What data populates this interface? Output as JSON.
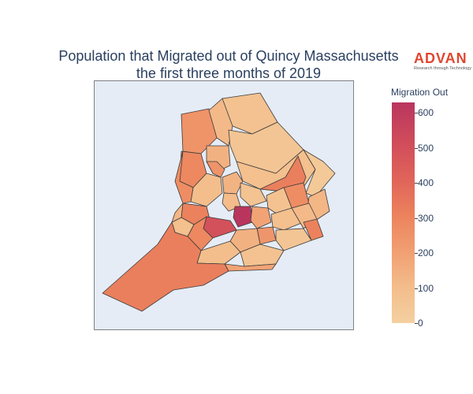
{
  "title": {
    "line1": "Population that Migrated out of Quincy Massachusetts",
    "line2": "the first three months of 2019"
  },
  "logo": {
    "word": "ADVAN",
    "tagline": "Research through Technology"
  },
  "colorbar": {
    "title": "Migration Out",
    "ticks": [
      "600",
      "500",
      "400",
      "300",
      "200",
      "100",
      "0"
    ]
  },
  "map_data": {
    "type": "choropleth",
    "variable": "Migration Out",
    "range": [
      0,
      630
    ],
    "colorscale": [
      "#f4d0a0",
      "#f3bd8b",
      "#f1a073",
      "#ec845d",
      "#e0645a",
      "#cf4b5b",
      "#b9355e"
    ],
    "regions": [
      {
        "value": 80
      },
      {
        "value": 260
      },
      {
        "value": 120
      },
      {
        "value": 300
      },
      {
        "value": 150
      },
      {
        "value": 60
      },
      {
        "value": 90
      },
      {
        "value": 330
      },
      {
        "value": 40
      },
      {
        "value": 280
      },
      {
        "value": 130
      },
      {
        "value": 100
      },
      {
        "value": 260
      },
      {
        "value": 140
      },
      {
        "value": 320
      },
      {
        "value": 110
      },
      {
        "value": 70
      },
      {
        "value": 80
      },
      {
        "value": 500
      },
      {
        "value": 630
      },
      {
        "value": 200
      },
      {
        "value": 90
      },
      {
        "value": 120
      },
      {
        "value": 300
      },
      {
        "value": 250
      },
      {
        "value": 150
      },
      {
        "value": 60
      },
      {
        "value": 100
      },
      {
        "value": 80
      },
      {
        "value": 320
      },
      {
        "value": 90
      },
      {
        "value": 280
      },
      {
        "value": 130
      },
      {
        "value": 200
      },
      {
        "value": 330
      }
    ]
  }
}
